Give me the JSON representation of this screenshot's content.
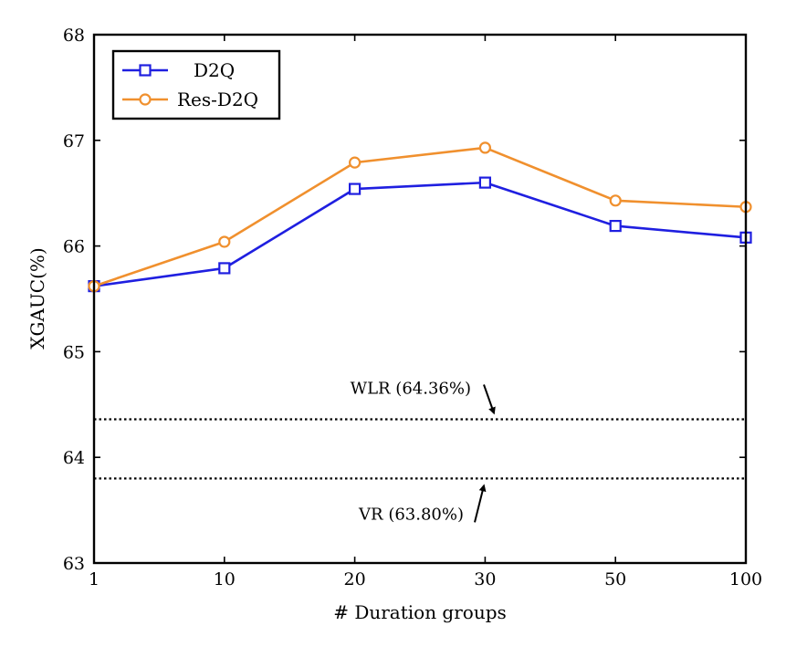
{
  "chart_data": {
    "type": "line",
    "title": "",
    "xlabel": "# Duration groups",
    "ylabel": "XGAUC(%)",
    "categories": [
      "1",
      "10",
      "20",
      "30",
      "50",
      "100"
    ],
    "ylim": [
      63,
      68
    ],
    "yticks": [
      "63",
      "64",
      "65",
      "66",
      "67",
      "68"
    ],
    "grid": false,
    "legend_position": "top-left",
    "series": [
      {
        "name": "D2Q",
        "color": "#1f1fe0",
        "marker": "square",
        "values": [
          65.62,
          65.79,
          66.54,
          66.6,
          66.19,
          66.08
        ]
      },
      {
        "name": "Res-D2Q",
        "color": "#f0902e",
        "marker": "circle",
        "values": [
          65.62,
          66.04,
          66.79,
          66.93,
          66.43,
          66.37
        ]
      }
    ],
    "reference_lines": [
      {
        "name": "WLR",
        "label": "WLR (64.36%)",
        "value": 64.36,
        "arrow": "down"
      },
      {
        "name": "VR",
        "label": "VR (63.80%)",
        "value": 63.8,
        "arrow": "up"
      }
    ]
  }
}
